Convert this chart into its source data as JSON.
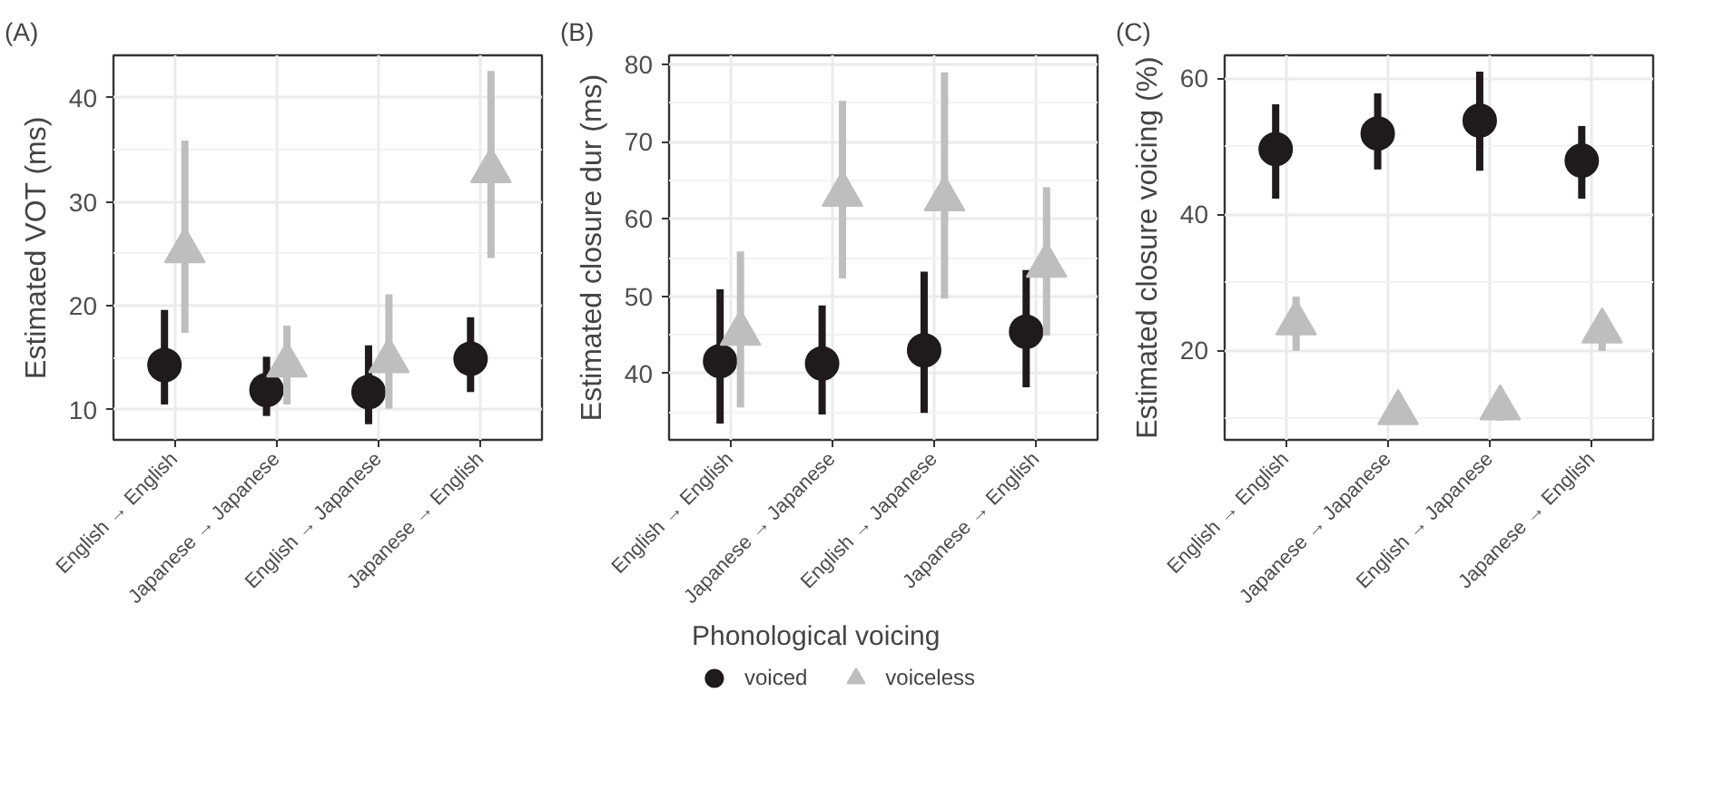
{
  "chart_data": [
    {
      "type": "scatter",
      "title": "(A)",
      "ylabel": "Estimated VOT (ms)",
      "categories": [
        "English → English",
        "Japanese → Japanese",
        "English → Japanese",
        "Japanese → English"
      ],
      "ylim": [
        7.1,
        44.1
      ],
      "yticks": [
        10,
        20,
        30,
        40
      ],
      "grid": true,
      "series": [
        {
          "color": "#1f1a1c",
          "marker": "circle",
          "values": [
            14.3,
            11.9,
            11.7,
            14.9
          ],
          "errors": [
            [
              10.5,
              19.6
            ],
            [
              9.4,
              15.1
            ],
            [
              8.6,
              16.2
            ],
            [
              11.7,
              18.9
            ]
          ]
        },
        {
          "color": "#bebebe",
          "marker": "triangle",
          "values": [
            25.3,
            14.3,
            14.7,
            33.0
          ],
          "errors": [
            [
              17.4,
              35.9
            ],
            [
              10.5,
              18.1
            ],
            [
              10.1,
              21.1
            ],
            [
              24.6,
              42.6
            ]
          ]
        }
      ]
    },
    {
      "type": "scatter",
      "title": "(B)",
      "ylabel": "Estimated closure dur (ms)",
      "categories": [
        "English → English",
        "Japanese → Japanese",
        "English → Japanese",
        "Japanese → English"
      ],
      "ylim": [
        31.4,
        81.2
      ],
      "yticks": [
        40,
        50,
        60,
        70,
        80
      ],
      "grid": true,
      "legend": "bottom",
      "legend_title": "Phonological voicing",
      "series": [
        {
          "name": "voiced",
          "color": "#1f1a1c",
          "marker": "circle",
          "values": [
            41.6,
            41.3,
            43.0,
            45.4
          ],
          "errors": [
            [
              33.5,
              50.9
            ],
            [
              34.7,
              48.8
            ],
            [
              34.9,
              53.2
            ],
            [
              38.2,
              53.4
            ]
          ]
        },
        {
          "name": "voiceless",
          "color": "#bebebe",
          "marker": "triangle",
          "values": [
            45.2,
            63.2,
            62.6,
            54.0
          ],
          "errors": [
            [
              35.6,
              55.8
            ],
            [
              52.3,
              75.3
            ],
            [
              49.7,
              79.0
            ],
            [
              44.9,
              64.1
            ]
          ]
        }
      ]
    },
    {
      "type": "scatter",
      "title": "(C)",
      "ylabel": "Estimated closure voicing (%)",
      "categories": [
        "English → English",
        "Japanese → Japanese",
        "English → Japanese",
        "Japanese → English"
      ],
      "ylim": [
        6.8,
        63.4
      ],
      "yticks": [
        20,
        40,
        60
      ],
      "grid": true,
      "series": [
        {
          "color": "#1f1a1c",
          "marker": "circle",
          "values": [
            49.6,
            51.9,
            53.8,
            47.9
          ],
          "errors": [
            [
              42.3,
              56.2
            ],
            [
              46.6,
              57.8
            ],
            [
              46.4,
              61.0
            ],
            [
              42.3,
              53.0
            ]
          ]
        },
        {
          "color": "#bebebe",
          "marker": "triangle",
          "values": [
            24.0,
            10.8,
            11.5,
            22.8
          ],
          "errors": [
            [
              19.9,
              27.9
            ],
            [
              9.6,
              12.0
            ],
            [
              9.6,
              13.2
            ],
            [
              19.9,
              25.6
            ]
          ]
        }
      ]
    }
  ]
}
